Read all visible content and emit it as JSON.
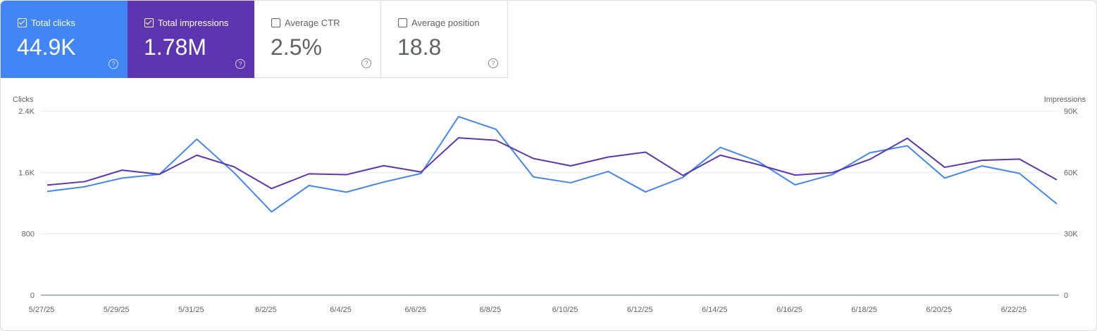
{
  "metrics": [
    {
      "label": "Total clicks",
      "value": "44.9K",
      "checked": true,
      "color": "#4285f4"
    },
    {
      "label": "Total impressions",
      "value": "1.78M",
      "checked": true,
      "color": "#5e35b1"
    },
    {
      "label": "Average CTR",
      "value": "2.5%",
      "checked": false
    },
    {
      "label": "Average position",
      "value": "18.8",
      "checked": false
    }
  ],
  "help_icon": "?",
  "chart_data": {
    "type": "line",
    "x": [
      "5/27/25",
      "5/28/25",
      "5/29/25",
      "5/30/25",
      "5/31/25",
      "6/1/25",
      "6/2/25",
      "6/3/25",
      "6/4/25",
      "6/5/25",
      "6/6/25",
      "6/7/25",
      "6/8/25",
      "6/9/25",
      "6/10/25",
      "6/11/25",
      "6/12/25",
      "6/13/25",
      "6/14/25",
      "6/15/25",
      "6/16/25",
      "6/17/25",
      "6/18/25",
      "6/19/25",
      "6/20/25",
      "6/21/25",
      "6/22/25",
      "6/23/25"
    ],
    "x_tick_labels": [
      "5/27/25",
      "5/29/25",
      "5/31/25",
      "6/2/25",
      "6/4/25",
      "6/6/25",
      "6/8/25",
      "6/10/25",
      "6/12/25",
      "6/14/25",
      "6/16/25",
      "6/18/25",
      "6/20/25",
      "6/22/25"
    ],
    "left_axis": {
      "label": "Clicks",
      "ticks": [
        "0",
        "800",
        "1.6K",
        "2.4K"
      ],
      "range": [
        0,
        2400
      ]
    },
    "right_axis": {
      "label": "Impressions",
      "ticks": [
        "0",
        "30K",
        "60K",
        "90K"
      ],
      "range": [
        0,
        90000
      ]
    },
    "grid": true,
    "series": [
      {
        "name": "Clicks",
        "axis": "left",
        "color": "#4285f4",
        "values": [
          1352,
          1413,
          1526,
          1575,
          2033,
          1596,
          1086,
          1429,
          1343,
          1474,
          1587,
          2327,
          2162,
          1541,
          1465,
          1612,
          1346,
          1535,
          1926,
          1746,
          1438,
          1572,
          1856,
          1947,
          1526,
          1685,
          1587,
          1190
        ]
      },
      {
        "name": "Impressions",
        "axis": "right",
        "color": "#5e35b1",
        "values": [
          53800,
          55500,
          61100,
          59100,
          68400,
          62700,
          52100,
          59300,
          58900,
          63300,
          60200,
          76900,
          75700,
          66800,
          63200,
          67500,
          69900,
          58500,
          68400,
          63900,
          58700,
          59900,
          66400,
          76700,
          62500,
          65900,
          66500,
          56400
        ]
      }
    ]
  }
}
